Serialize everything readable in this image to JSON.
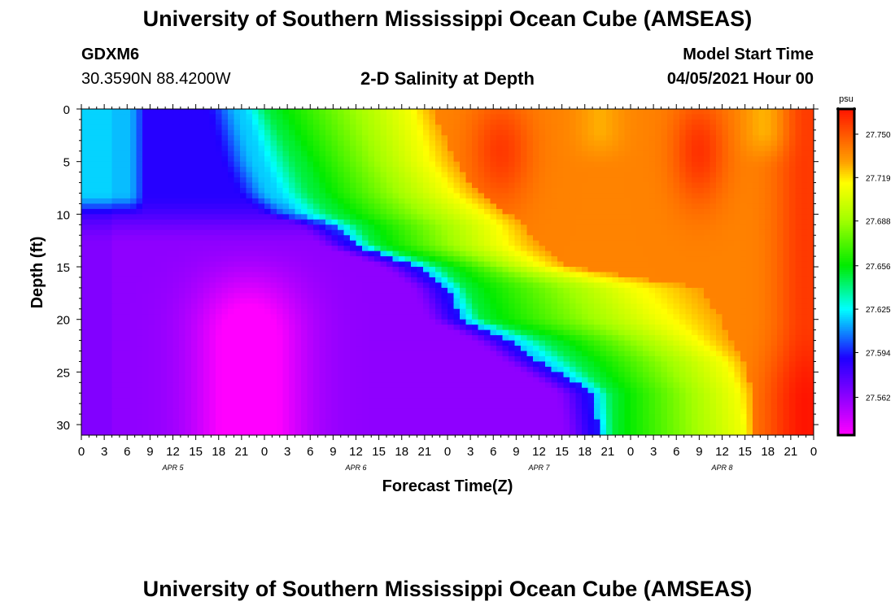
{
  "header": {
    "title": "University of Southern Mississippi Ocean Cube (AMSEAS)",
    "station": "GDXM6",
    "coordinates": "30.3590N  88.4200W",
    "subtitle": "2-D Salinity at Depth",
    "model_start_label": "Model Start Time",
    "model_start_value": "04/05/2021 Hour 00"
  },
  "footer": {
    "title": "University of Southern Mississippi Ocean Cube (AMSEAS)"
  },
  "chart_data": {
    "type": "heatmap",
    "title": "2-D Salinity at Depth",
    "xlabel": "Forecast Time(Z)",
    "ylabel": "Depth (ft)",
    "x_tick_labels": [
      "0",
      "3",
      "6",
      "9",
      "12",
      "15",
      "18",
      "21",
      "0",
      "3",
      "6",
      "9",
      "12",
      "15",
      "18",
      "21",
      "0",
      "3",
      "6",
      "9",
      "12",
      "15",
      "18",
      "21",
      "0",
      "3",
      "6",
      "9",
      "12",
      "15",
      "18",
      "21",
      "0"
    ],
    "x_range_hours": [
      0,
      96
    ],
    "day_labels": [
      {
        "label": "APR  5",
        "hour": 12
      },
      {
        "label": "APR  6",
        "hour": 36
      },
      {
        "label": "APR  7",
        "hour": 60
      },
      {
        "label": "APR  8",
        "hour": 84
      }
    ],
    "y_ticks": [
      0,
      5,
      10,
      15,
      20,
      25,
      30
    ],
    "ylim": [
      0,
      31
    ],
    "colorbar": {
      "unit": "psu",
      "tick_labels": [
        "27.750",
        "27.719",
        "27.688",
        "27.656",
        "27.625",
        "27.594",
        "27.562"
      ],
      "range": [
        27.535,
        27.768
      ]
    },
    "boundaries_hours": {
      "depth_ft": [
        0,
        5,
        8,
        10,
        11,
        13,
        15,
        17,
        20,
        22,
        24,
        27,
        31
      ],
      "cyan_front": [
        21,
        23,
        25,
        28,
        33,
        36,
        44,
        48,
        50,
        56,
        60,
        67,
        68
      ],
      "green_front": [
        25,
        29,
        31,
        34,
        37,
        39,
        48,
        51,
        53,
        62,
        66,
        70,
        70
      ],
      "yellow_front": [
        43,
        45,
        48,
        52,
        54,
        55,
        60,
        72,
        76,
        80,
        84,
        86,
        87
      ],
      "orange_front": [
        46,
        49,
        52,
        56,
        58,
        60,
        64,
        81,
        84,
        85,
        87,
        88,
        88
      ]
    }
  }
}
